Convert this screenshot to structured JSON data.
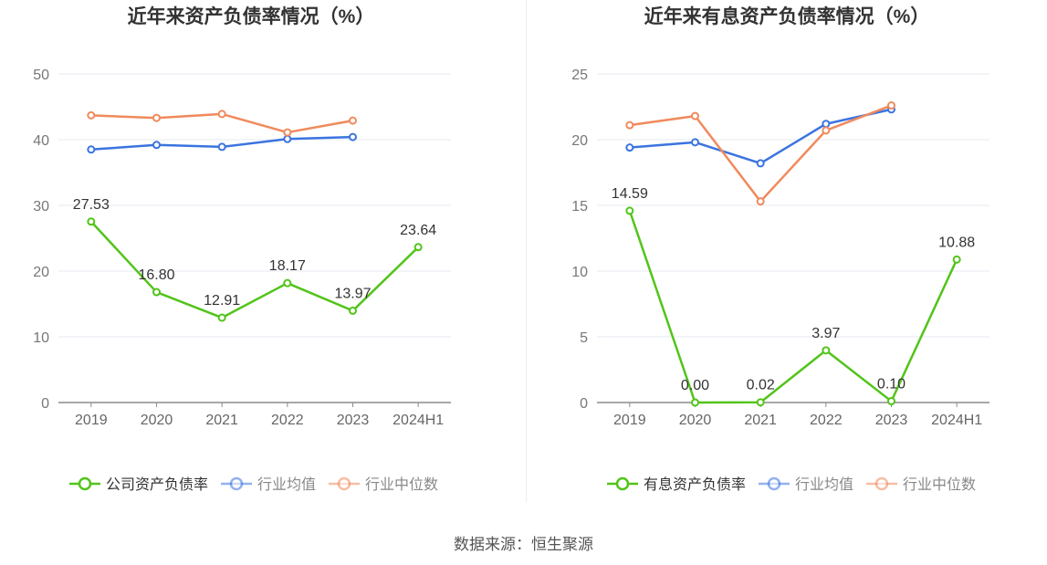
{
  "source_text": "数据来源：恒生聚源",
  "chart_data": [
    {
      "type": "line",
      "title": "近年来资产负债率情况（%）",
      "categories": [
        "2019",
        "2020",
        "2021",
        "2022",
        "2023",
        "2024H1"
      ],
      "ylim": [
        0,
        50
      ],
      "yticks": [
        0,
        10,
        20,
        30,
        40,
        50
      ],
      "grid": true,
      "legend_position": "bottom",
      "series": [
        {
          "name": "公司资产负债率",
          "color": "#52c41a",
          "labels": true,
          "values": [
            27.53,
            16.8,
            12.91,
            18.17,
            13.97,
            23.64
          ],
          "value_labels": [
            "27.53",
            "16.80",
            "12.91",
            "18.17",
            "13.97",
            "23.64"
          ]
        },
        {
          "name": "行业均值",
          "color": "#3b74e0",
          "labels": false,
          "values": [
            38.5,
            39.2,
            38.9,
            40.1,
            40.4,
            null
          ]
        },
        {
          "name": "行业中位数",
          "color": "#f08a5d",
          "labels": false,
          "values": [
            43.7,
            43.3,
            43.9,
            41.1,
            42.9,
            null
          ]
        }
      ]
    },
    {
      "type": "line",
      "title": "近年来有息资产负债率情况（%）",
      "categories": [
        "2019",
        "2020",
        "2021",
        "2022",
        "2023",
        "2024H1"
      ],
      "ylim": [
        0,
        25
      ],
      "yticks": [
        0,
        5,
        10,
        15,
        20,
        25
      ],
      "grid": true,
      "legend_position": "bottom",
      "series": [
        {
          "name": "有息资产负债率",
          "color": "#52c41a",
          "labels": true,
          "values": [
            14.59,
            0.0,
            0.02,
            3.97,
            0.1,
            10.88
          ],
          "value_labels": [
            "14.59",
            "0.00",
            "0.02",
            "3.97",
            "0.10",
            "10.88"
          ]
        },
        {
          "name": "行业均值",
          "color": "#3b74e0",
          "labels": false,
          "values": [
            19.4,
            19.8,
            18.2,
            21.2,
            22.3,
            null
          ]
        },
        {
          "name": "行业中位数",
          "color": "#f08a5d",
          "labels": false,
          "values": [
            21.1,
            21.8,
            15.3,
            20.7,
            22.6,
            null
          ]
        }
      ]
    }
  ]
}
